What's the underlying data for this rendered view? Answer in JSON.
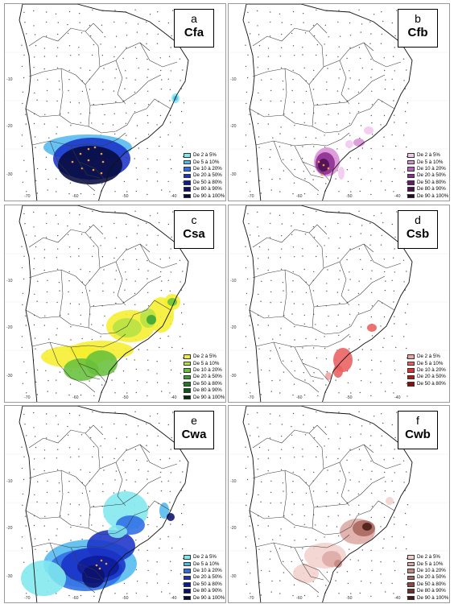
{
  "panels": [
    {
      "letter": "a",
      "name": "Cfa",
      "legend": [
        {
          "label": "De 2 à 5%",
          "color": "#7fe8ee"
        },
        {
          "label": "De 5 à 10%",
          "color": "#52b9ef"
        },
        {
          "label": "De 10 à 20%",
          "color": "#2f6de4"
        },
        {
          "label": "De 20 à 50%",
          "color": "#1a32c6"
        },
        {
          "label": "De 50 à 80%",
          "color": "#0c1a97"
        },
        {
          "label": "De 80 à 90%",
          "color": "#0b116b"
        },
        {
          "label": "De 90 à 100%",
          "color": "#060a3e"
        }
      ]
    },
    {
      "letter": "b",
      "name": "Cfb",
      "legend": [
        {
          "label": "De 2 à 5%",
          "color": "#f2c7ef"
        },
        {
          "label": "De 5 à 10%",
          "color": "#d98fd6"
        },
        {
          "label": "De 10 à 20%",
          "color": "#b55fb6"
        },
        {
          "label": "De 20 à 50%",
          "color": "#8b2c8f"
        },
        {
          "label": "De 50 à 80%",
          "color": "#6a1b6e"
        },
        {
          "label": "De 80 à 90%",
          "color": "#4c0f50"
        },
        {
          "label": "De 90 à 100%",
          "color": "#2f0633"
        }
      ]
    },
    {
      "letter": "c",
      "name": "Csa",
      "legend": [
        {
          "label": "De 2 à 5%",
          "color": "#f5ee2e"
        },
        {
          "label": "De 5 à 10%",
          "color": "#b5e044"
        },
        {
          "label": "De 10 à 20%",
          "color": "#66c03b"
        },
        {
          "label": "De 20 à 50%",
          "color": "#3aa334"
        },
        {
          "label": "De 50 à 80%",
          "color": "#1d7a22"
        },
        {
          "label": "De 80 à 90%",
          "color": "#0f5515"
        },
        {
          "label": "De 90 à 100%",
          "color": "#062e09"
        }
      ]
    },
    {
      "letter": "d",
      "name": "Csb",
      "legend": [
        {
          "label": "De 2 à 5%",
          "color": "#f4a1a1"
        },
        {
          "label": "De 5 à 10%",
          "color": "#ea6060"
        },
        {
          "label": "De 10 à 20%",
          "color": "#d93131"
        },
        {
          "label": "De 20 à 50%",
          "color": "#b81818"
        },
        {
          "label": "De 50 à 80%",
          "color": "#8d0b0b"
        }
      ]
    },
    {
      "letter": "e",
      "name": "Cwa",
      "legend": [
        {
          "label": "De 2 à 5%",
          "color": "#7fe8ee"
        },
        {
          "label": "De 5 à 10%",
          "color": "#52b9ef"
        },
        {
          "label": "De 10 à 20%",
          "color": "#2f6de4"
        },
        {
          "label": "De 20 à 50%",
          "color": "#1a32c6"
        },
        {
          "label": "De 50 à 80%",
          "color": "#0c1a97"
        },
        {
          "label": "De 80 à 90%",
          "color": "#0b116b"
        },
        {
          "label": "De 90 à 100%",
          "color": "#060a3e"
        }
      ]
    },
    {
      "letter": "f",
      "name": "Cwb",
      "legend": [
        {
          "label": "De 2 à 5%",
          "color": "#f3d0cc"
        },
        {
          "label": "De 5 à 10%",
          "color": "#deaaa5"
        },
        {
          "label": "De 10 à 20%",
          "color": "#c4877f"
        },
        {
          "label": "De 20 à 50%",
          "color": "#a9665d"
        },
        {
          "label": "De 50 à 80%",
          "color": "#8a4a42"
        },
        {
          "label": "De 80 à 90%",
          "color": "#6a312a"
        },
        {
          "label": "De 90 à 100%",
          "color": "#451c16"
        }
      ]
    }
  ],
  "axis": {
    "lat_ticks": [
      "-10",
      "-20",
      "-30"
    ],
    "lon_ticks": [
      "-70",
      "-60",
      "-50",
      "-40"
    ]
  }
}
